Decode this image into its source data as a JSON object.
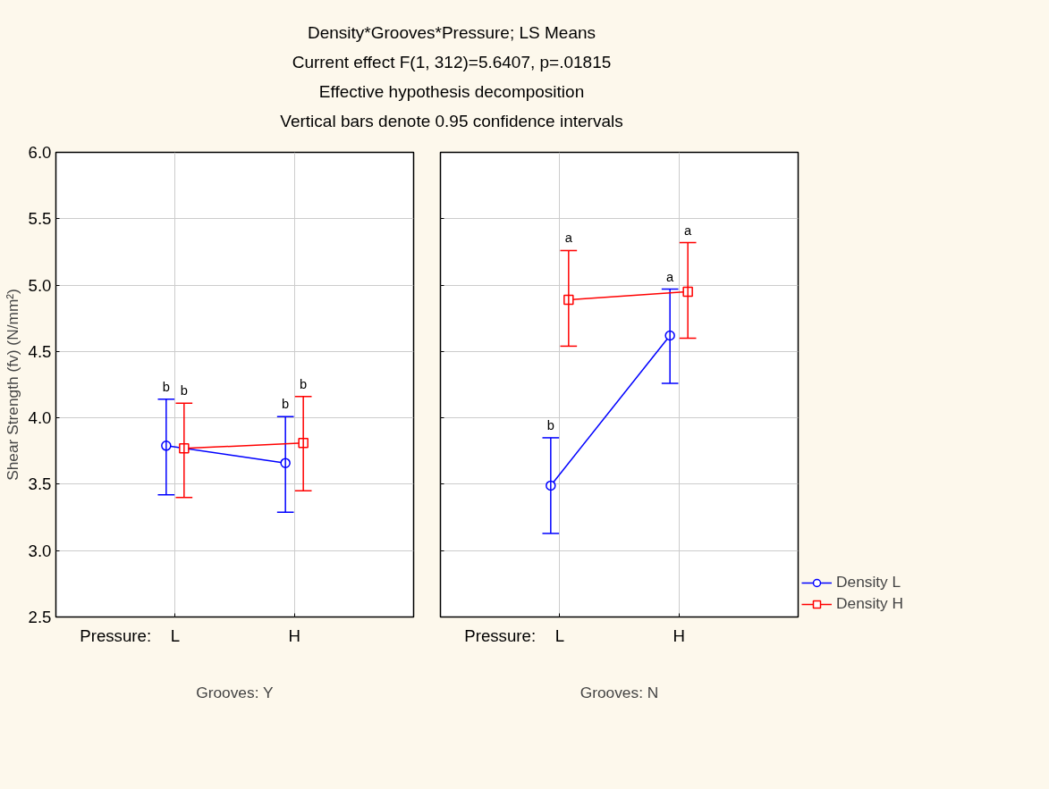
{
  "chart_data": [
    {
      "type": "line",
      "title": "Density*Grooves*Pressure; LS Means",
      "subtitle": "Current effect F(1, 312)=5.6407, p=.01815\nEffective hypothesis decomposition\nVertical bars denote 0.95 confidence intervals",
      "ylabel": "Shear Strength (fv) (N/mm²)",
      "xlabel": "Grooves: Y",
      "annotations": [
        "Pressure:",
        {
          "text": "b",
          "x": "L",
          "y": 4.14
        },
        {
          "text": "b",
          "x": "H",
          "y": 4.01
        },
        {
          "text": "b",
          "x": "L",
          "y": 4.11
        },
        {
          "text": "b",
          "x": "H",
          "y": 4.16
        }
      ],
      "categories": [
        "L",
        "H"
      ],
      "ylim": [
        2.5,
        6.0
      ],
      "yticks": [
        {
          "value": 2.5,
          "label": "2.5"
        },
        {
          "value": 3,
          "label": "3.0"
        },
        {
          "value": 3.5,
          "label": "3.5"
        },
        {
          "value": 4,
          "label": "4.0"
        },
        {
          "value": 4.5,
          "label": "4.5"
        },
        {
          "value": 5,
          "label": "5.0"
        },
        {
          "value": 5.5,
          "label": "5.5"
        },
        {
          "value": 6,
          "label": "6.0"
        }
      ],
      "grid": true,
      "legend": false,
      "series": [
        {
          "color": "#0000ff",
          "marker": "circle",
          "values": [
            3.79,
            3.66
          ],
          "errors": [
            [
              3.42,
              4.14
            ],
            [
              3.29,
              4.01
            ]
          ]
        },
        {
          "color": "#ff0000",
          "marker": "square",
          "values": [
            3.77,
            3.81
          ],
          "errors": [
            [
              3.4,
              4.11
            ],
            [
              3.45,
              4.16
            ]
          ]
        }
      ]
    },
    {
      "type": "line",
      "xlabel": "Grooves: N",
      "tick_labels": "x",
      "annotations": [
        "Pressure:",
        {
          "text": "b",
          "x": "L",
          "y": 3.85
        },
        {
          "text": "a",
          "x": "H",
          "y": 4.97
        },
        {
          "text": "a",
          "x": "L",
          "y": 5.26
        },
        {
          "text": "a",
          "x": "H",
          "y": 5.32
        }
      ],
      "categories": [
        "L",
        "H"
      ],
      "ylim": [
        2.5,
        6.0
      ],
      "yticks": [
        2.5,
        3,
        3.5,
        4,
        4.5,
        5,
        5.5,
        6
      ],
      "grid": true,
      "legend": "bottom right",
      "series": [
        {
          "name": "Density L",
          "color": "#0000ff",
          "marker": "circle",
          "values": [
            3.49,
            4.62
          ],
          "errors": [
            [
              3.13,
              3.85
            ],
            [
              4.26,
              4.97
            ]
          ]
        },
        {
          "name": "Density H",
          "color": "#ff0000",
          "marker": "square",
          "values": [
            4.89,
            4.95
          ],
          "errors": [
            [
              4.54,
              5.26
            ],
            [
              4.6,
              5.32
            ]
          ]
        }
      ]
    }
  ]
}
